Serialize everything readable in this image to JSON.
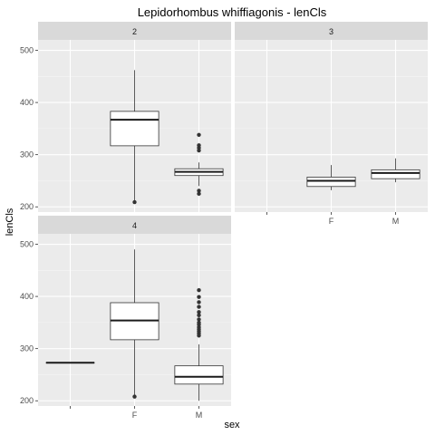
{
  "chart_data": {
    "type": "boxplot",
    "title": "Lepidorhombus whiffiagonis - lenCls",
    "xlabel": "sex",
    "ylabel": "lenCls",
    "facet_layout": "wrap",
    "categories": [
      "",
      "F",
      "M"
    ],
    "y_ticks": [
      200,
      300,
      400,
      500
    ],
    "ylim": [
      190,
      520
    ],
    "grid": true,
    "panels": [
      {
        "label": "2",
        "boxes": [
          {
            "category": "F",
            "min": 210,
            "q1": 317,
            "median": 367,
            "q3": 383,
            "max": 462,
            "outliers": [
              209
            ]
          },
          {
            "category": "M",
            "min": 240,
            "q1": 260,
            "median": 267,
            "q3": 273,
            "max": 285,
            "outliers": [
              338,
              318,
              313,
              308,
              231,
              225
            ]
          }
        ]
      },
      {
        "label": "3",
        "boxes": [
          {
            "category": "F",
            "min": 232,
            "q1": 239,
            "median": 250,
            "q3": 257,
            "max": 280,
            "outliers": []
          },
          {
            "category": "M",
            "min": 247,
            "q1": 254,
            "median": 265,
            "q3": 271,
            "max": 293,
            "outliers": []
          }
        ]
      },
      {
        "label": "4",
        "boxes": [
          {
            "category": "",
            "min": 273,
            "q1": 273,
            "median": 273,
            "q3": 273,
            "max": 273,
            "outliers": []
          },
          {
            "category": "F",
            "min": 210,
            "q1": 317,
            "median": 354,
            "q3": 388,
            "max": 490,
            "outliers": [
              208
            ]
          },
          {
            "category": "M",
            "min": 200,
            "q1": 232,
            "median": 246,
            "q3": 267,
            "max": 308,
            "outliers": [
              412,
              399,
              389,
              380,
              370,
              364,
              356,
              350,
              346,
              341,
              337,
              333,
              329,
              325
            ]
          }
        ]
      }
    ]
  }
}
